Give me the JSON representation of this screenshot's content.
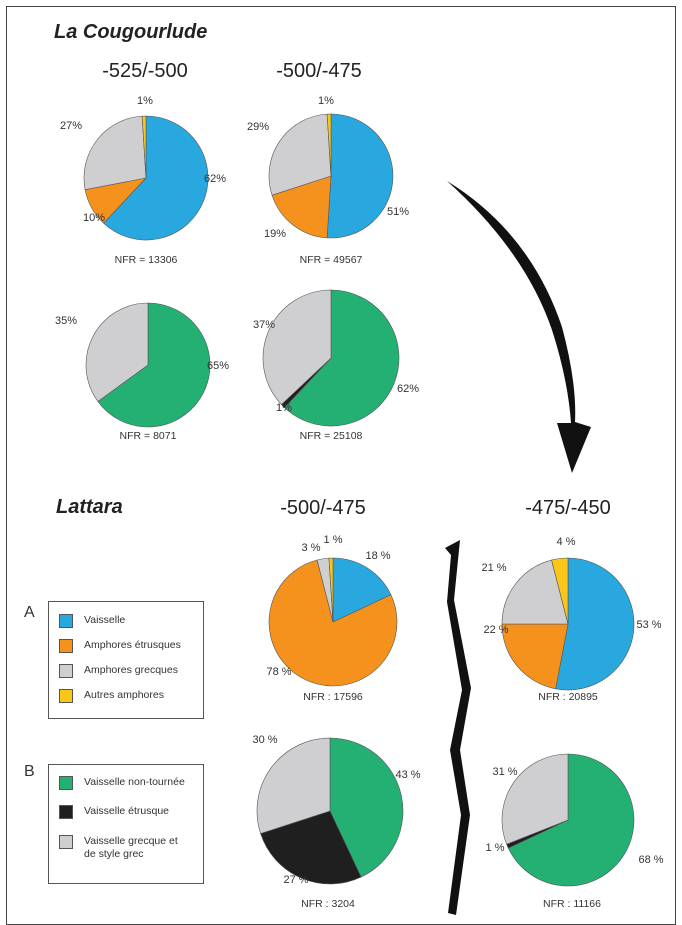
{
  "titles": {
    "site1": "La Cougourlude",
    "site2": "Lattara"
  },
  "legend": {
    "A": {
      "letter": "A",
      "items": [
        {
          "label": "Vaisselle",
          "color": "#29a8e0"
        },
        {
          "label": "Amphores étrusques",
          "color": "#f5921e"
        },
        {
          "label": "Amphores grecques",
          "color": "#cfcfd1"
        },
        {
          "label": "Autres amphores",
          "color": "#fbc617"
        }
      ]
    },
    "B": {
      "letter": "B",
      "items": [
        {
          "label": "Vaisselle non-tournée",
          "color": "#25b073"
        },
        {
          "label": "Vaisselle étrusque",
          "color": "#1f1f1f"
        },
        {
          "label": "Vaisselle grecque et\nde style grec",
          "color": "#cfcfd1"
        }
      ]
    }
  },
  "chart_data": [
    {
      "type": "pie",
      "site": "La Cougourlude",
      "period": "-525/-500",
      "group": "A",
      "nfr": "NFR = 13306",
      "slices": [
        {
          "category": "Vaisselle",
          "value": 62,
          "label": "62%",
          "color": "#29a8e0"
        },
        {
          "category": "Amphores étrusques",
          "value": 10,
          "label": "10%",
          "color": "#f5921e"
        },
        {
          "category": "Amphores grecques",
          "value": 27,
          "label": "27%",
          "color": "#cfcfd1"
        },
        {
          "category": "Autres amphores",
          "value": 1,
          "label": "1%",
          "color": "#fbc617"
        }
      ]
    },
    {
      "type": "pie",
      "site": "La Cougourlude",
      "period": "-500/-475",
      "group": "A",
      "nfr": "NFR = 49567",
      "slices": [
        {
          "category": "Vaisselle",
          "value": 51,
          "label": "51%",
          "color": "#29a8e0"
        },
        {
          "category": "Amphores étrusques",
          "value": 19,
          "label": "19%",
          "color": "#f5921e"
        },
        {
          "category": "Amphores grecques",
          "value": 29,
          "label": "29%",
          "color": "#cfcfd1"
        },
        {
          "category": "Autres amphores",
          "value": 1,
          "label": "1%",
          "color": "#fbc617"
        }
      ]
    },
    {
      "type": "pie",
      "site": "La Cougourlude",
      "period": "-525/-500",
      "group": "B",
      "nfr": "NFR = 8071",
      "slices": [
        {
          "category": "Vaisselle non-tournée",
          "value": 65,
          "label": "65%",
          "color": "#25b073"
        },
        {
          "category": "Vaisselle grecque et de style grec",
          "value": 35,
          "label": "35%",
          "color": "#cfcfd1"
        }
      ]
    },
    {
      "type": "pie",
      "site": "La Cougourlude",
      "period": "-500/-475",
      "group": "B",
      "nfr": "NFR = 25108",
      "slices": [
        {
          "category": "Vaisselle non-tournée",
          "value": 62,
          "label": "62%",
          "color": "#25b073"
        },
        {
          "category": "Vaisselle étrusque",
          "value": 1,
          "label": "1%",
          "color": "#1f1f1f"
        },
        {
          "category": "Vaisselle grecque et de style grec",
          "value": 37,
          "label": "37%",
          "color": "#cfcfd1"
        }
      ]
    },
    {
      "type": "pie",
      "site": "Lattara",
      "period": "-500/-475",
      "group": "A",
      "nfr": "NFR : 17596",
      "slices": [
        {
          "category": "Vaisselle",
          "value": 18,
          "label": "18 %",
          "color": "#29a8e0"
        },
        {
          "category": "Amphores étrusques",
          "value": 78,
          "label": "78 %",
          "color": "#f5921e"
        },
        {
          "category": "Amphores grecques",
          "value": 3,
          "label": "3 %",
          "color": "#cfcfd1"
        },
        {
          "category": "Autres amphores",
          "value": 1,
          "label": "1 %",
          "color": "#fbc617"
        }
      ]
    },
    {
      "type": "pie",
      "site": "Lattara",
      "period": "-475/-450",
      "group": "A",
      "nfr": "NFR : 20895",
      "slices": [
        {
          "category": "Vaisselle",
          "value": 53,
          "label": "53 %",
          "color": "#29a8e0"
        },
        {
          "category": "Amphores étrusques",
          "value": 22,
          "label": "22 %",
          "color": "#f5921e"
        },
        {
          "category": "Amphores grecques",
          "value": 21,
          "label": "21 %",
          "color": "#cfcfd1"
        },
        {
          "category": "Autres amphores",
          "value": 4,
          "label": "4 %",
          "color": "#fbc617"
        }
      ]
    },
    {
      "type": "pie",
      "site": "Lattara",
      "period": "-500/-475",
      "group": "B",
      "nfr": "NFR : 3204",
      "slices": [
        {
          "category": "Vaisselle non-tournée",
          "value": 43,
          "label": "43 %",
          "color": "#25b073"
        },
        {
          "category": "Vaisselle étrusque",
          "value": 27,
          "label": "27 %",
          "color": "#1f1f1f"
        },
        {
          "category": "Vaisselle grecque et de style grec",
          "value": 30,
          "label": "30 %",
          "color": "#cfcfd1"
        }
      ]
    },
    {
      "type": "pie",
      "site": "Lattara",
      "period": "-475/-450",
      "group": "B",
      "nfr": "NFR : 11166",
      "slices": [
        {
          "category": "Vaisselle non-tournée",
          "value": 68,
          "label": "68 %",
          "color": "#25b073"
        },
        {
          "category": "Vaisselle étrusque",
          "value": 1,
          "label": "1 %",
          "color": "#1f1f1f"
        },
        {
          "category": "Vaisselle grecque et de style grec",
          "value": 31,
          "label": "31 %",
          "color": "#cfcfd1"
        }
      ]
    }
  ]
}
